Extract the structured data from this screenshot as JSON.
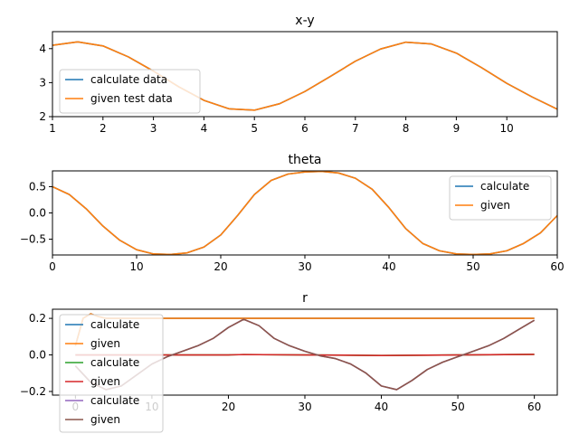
{
  "chart_data": [
    {
      "type": "line",
      "title": "x-y",
      "xlim": [
        1,
        11
      ],
      "ylim": [
        2,
        4.5
      ],
      "x_ticks": [
        "1",
        "2",
        "3",
        "4",
        "5",
        "6",
        "7",
        "8",
        "9",
        "10"
      ],
      "y_ticks": [
        "2",
        "3",
        "4"
      ],
      "legend_position": "lower-left",
      "series": [
        {
          "name": "calculate data",
          "color": "#1f77b4",
          "x": [
            1.0,
            1.5,
            2.0,
            2.5,
            3.0,
            3.5,
            4.0,
            4.5,
            5.0,
            5.5,
            6.0,
            6.5,
            7.0,
            7.5,
            8.0,
            8.5,
            9.0,
            9.5,
            10.0,
            10.5,
            11.0
          ],
          "y": [
            4.1,
            4.2,
            4.08,
            3.76,
            3.34,
            2.88,
            2.48,
            2.23,
            2.19,
            2.38,
            2.74,
            3.18,
            3.63,
            3.99,
            4.19,
            4.14,
            3.87,
            3.44,
            2.98,
            2.58,
            2.22
          ]
        },
        {
          "name": "given test data",
          "color": "#ff7f0e",
          "x": [
            1.0,
            1.5,
            2.0,
            2.5,
            3.0,
            3.5,
            4.0,
            4.5,
            5.0,
            5.5,
            6.0,
            6.5,
            7.0,
            7.5,
            8.0,
            8.5,
            9.0,
            9.5,
            10.0,
            10.5,
            11.0
          ],
          "y": [
            4.1,
            4.2,
            4.08,
            3.76,
            3.34,
            2.88,
            2.48,
            2.23,
            2.19,
            2.38,
            2.74,
            3.18,
            3.63,
            3.99,
            4.19,
            4.14,
            3.87,
            3.44,
            2.98,
            2.58,
            2.22
          ]
        }
      ]
    },
    {
      "type": "line",
      "title": "theta",
      "xlim": [
        0,
        60
      ],
      "ylim": [
        -0.8,
        0.8
      ],
      "x_ticks": [
        "0",
        "10",
        "20",
        "30",
        "40",
        "50",
        "60"
      ],
      "y_ticks": [
        "0.5",
        "0.0",
        "−0.5"
      ],
      "legend_position": "upper-right",
      "series": [
        {
          "name": "calculate",
          "color": "#1f77b4",
          "x": [
            0,
            2,
            4,
            6,
            8,
            10,
            12,
            14,
            16,
            18,
            20,
            22,
            24,
            26,
            28,
            30,
            32,
            34,
            36,
            38,
            40,
            42,
            44,
            46,
            48,
            50,
            52,
            54,
            56,
            58,
            60
          ],
          "y": [
            0.5,
            0.35,
            0.08,
            -0.25,
            -0.52,
            -0.7,
            -0.78,
            -0.79,
            -0.76,
            -0.65,
            -0.42,
            -0.05,
            0.35,
            0.62,
            0.74,
            0.78,
            0.79,
            0.76,
            0.66,
            0.45,
            0.1,
            -0.3,
            -0.58,
            -0.72,
            -0.78,
            -0.79,
            -0.78,
            -0.72,
            -0.58,
            -0.38,
            -0.05
          ]
        },
        {
          "name": "given",
          "color": "#ff7f0e",
          "x": [
            0,
            2,
            4,
            6,
            8,
            10,
            12,
            14,
            16,
            18,
            20,
            22,
            24,
            26,
            28,
            30,
            32,
            34,
            36,
            38,
            40,
            42,
            44,
            46,
            48,
            50,
            52,
            54,
            56,
            58,
            60
          ],
          "y": [
            0.5,
            0.35,
            0.08,
            -0.25,
            -0.52,
            -0.7,
            -0.78,
            -0.79,
            -0.76,
            -0.65,
            -0.42,
            -0.05,
            0.35,
            0.62,
            0.74,
            0.78,
            0.79,
            0.76,
            0.66,
            0.45,
            0.1,
            -0.3,
            -0.58,
            -0.72,
            -0.78,
            -0.79,
            -0.78,
            -0.72,
            -0.58,
            -0.38,
            -0.05
          ]
        }
      ]
    },
    {
      "type": "line",
      "title": "r",
      "xlim": [
        -3,
        63
      ],
      "ylim": [
        -0.22,
        0.25
      ],
      "x_ticks": [
        "0",
        "10",
        "20",
        "30",
        "40",
        "50",
        "60"
      ],
      "y_ticks": [
        "0.2",
        "0.0",
        "−0.2"
      ],
      "legend_position": "lower-left",
      "series": [
        {
          "name": "calculate",
          "color": "#1f77b4",
          "x": [
            0,
            1,
            2,
            3,
            4,
            6,
            10,
            20,
            30,
            40,
            50,
            60
          ],
          "y": [
            0.05,
            0.2,
            0.225,
            0.21,
            0.2,
            0.2,
            0.2,
            0.2,
            0.2,
            0.2,
            0.2,
            0.2
          ]
        },
        {
          "name": "given",
          "color": "#ff7f0e",
          "x": [
            0,
            1,
            2,
            3,
            4,
            6,
            10,
            20,
            30,
            40,
            50,
            60
          ],
          "y": [
            0.05,
            0.2,
            0.225,
            0.21,
            0.2,
            0.2,
            0.2,
            0.2,
            0.2,
            0.2,
            0.2,
            0.2
          ]
        },
        {
          "name": "calculate",
          "color": "#2ca02c",
          "x": [
            0,
            10,
            20,
            22,
            30,
            40,
            50,
            60
          ],
          "y": [
            0.0,
            0.0,
            0.0,
            0.002,
            0.0,
            -0.003,
            0.0,
            0.003
          ]
        },
        {
          "name": "given",
          "color": "#d62728",
          "x": [
            0,
            10,
            20,
            22,
            30,
            40,
            50,
            60
          ],
          "y": [
            0.0,
            0.0,
            0.0,
            0.002,
            0.0,
            -0.003,
            0.0,
            0.003
          ]
        },
        {
          "name": "calculate",
          "color": "#9467bd",
          "x": [
            0,
            2,
            4,
            6,
            8,
            10,
            12,
            14,
            16,
            18,
            20,
            22,
            24,
            26,
            28,
            30,
            32,
            34,
            36,
            38,
            40,
            42,
            44,
            46,
            48,
            50,
            52,
            54,
            56,
            58,
            60
          ],
          "y": [
            -0.06,
            -0.15,
            -0.19,
            -0.17,
            -0.11,
            -0.05,
            -0.01,
            0.02,
            0.05,
            0.09,
            0.15,
            0.195,
            0.16,
            0.09,
            0.05,
            0.02,
            -0.005,
            -0.02,
            -0.05,
            -0.1,
            -0.17,
            -0.19,
            -0.14,
            -0.08,
            -0.04,
            -0.01,
            0.02,
            0.05,
            0.09,
            0.14,
            0.19
          ]
        },
        {
          "name": "given",
          "color": "#8c564b",
          "x": [
            0,
            2,
            4,
            6,
            8,
            10,
            12,
            14,
            16,
            18,
            20,
            22,
            24,
            26,
            28,
            30,
            32,
            34,
            36,
            38,
            40,
            42,
            44,
            46,
            48,
            50,
            52,
            54,
            56,
            58,
            60
          ],
          "y": [
            -0.06,
            -0.15,
            -0.19,
            -0.17,
            -0.11,
            -0.05,
            -0.01,
            0.02,
            0.05,
            0.09,
            0.15,
            0.195,
            0.16,
            0.09,
            0.05,
            0.02,
            -0.005,
            -0.02,
            -0.05,
            -0.1,
            -0.17,
            -0.19,
            -0.14,
            -0.08,
            -0.04,
            -0.01,
            0.02,
            0.05,
            0.09,
            0.14,
            0.19
          ]
        }
      ]
    }
  ]
}
